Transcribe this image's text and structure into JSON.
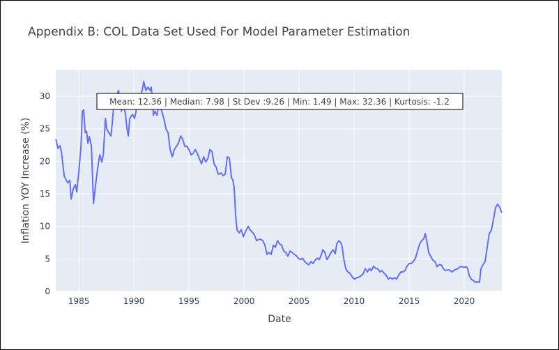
{
  "chart_data": {
    "type": "line",
    "title": "Appendix B: COL Data Set Used For Model Parameter Estimation",
    "x_label": "Date",
    "y_label": "Inflation YOY Increase (%)",
    "annotation": "Mean: 12.36 | Median: 7.98 | St Dev :9.26 | Min: 1.49 | Max: 32.36 | Kurtosis: -1.2",
    "xlim": [
      1982.9,
      2023.42
    ],
    "ylim": [
      0,
      34.08
    ],
    "xticks": [
      1985,
      1990,
      1995,
      2000,
      2005,
      2010,
      2015,
      2020
    ],
    "yticks": [
      0,
      5,
      10,
      15,
      20,
      25,
      30
    ],
    "grid": true,
    "series": [
      {
        "color": "#636efa",
        "x": [
          1982.91,
          1983.1,
          1983.29,
          1983.42,
          1983.67,
          1983.99,
          1984.18,
          1984.3,
          1984.49,
          1984.68,
          1984.81,
          1985.0,
          1985.19,
          1985.32,
          1985.44,
          1985.57,
          1985.7,
          1985.82,
          1985.95,
          1986.14,
          1986.33,
          1986.52,
          1986.71,
          1986.9,
          1987.09,
          1987.22,
          1987.41,
          1987.53,
          1987.72,
          1987.91,
          1988.04,
          1988.16,
          1988.35,
          1988.61,
          1988.86,
          1989.05,
          1989.24,
          1989.37,
          1989.49,
          1989.62,
          1989.87,
          1990.06,
          1990.25,
          1990.51,
          1990.76,
          1990.89,
          1991.08,
          1991.27,
          1991.46,
          1991.58,
          1991.77,
          1991.9,
          1992.09,
          1992.28,
          1992.53,
          1992.72,
          1992.91,
          1993.1,
          1993.29,
          1993.48,
          1993.67,
          1993.86,
          1994.05,
          1994.24,
          1994.43,
          1994.62,
          1994.81,
          1995.0,
          1995.19,
          1995.38,
          1995.57,
          1995.76,
          1995.95,
          1996.14,
          1996.33,
          1996.52,
          1996.71,
          1996.9,
          1997.09,
          1997.28,
          1997.47,
          1997.66,
          1997.91,
          1998.1,
          1998.29,
          1998.48,
          1998.67,
          1998.86,
          1998.99,
          1999.11,
          1999.24,
          1999.37,
          1999.56,
          1999.75,
          1999.94,
          2000.19,
          2000.38,
          2000.57,
          2000.76,
          2000.95,
          2001.14,
          2001.33,
          2001.52,
          2001.71,
          2001.9,
          2002.09,
          2002.28,
          2002.47,
          2002.66,
          2002.85,
          2003.04,
          2003.23,
          2003.42,
          2003.61,
          2003.8,
          2003.99,
          2004.18,
          2004.37,
          2004.56,
          2004.75,
          2004.94,
          2005.13,
          2005.32,
          2005.51,
          2005.7,
          2005.89,
          2006.08,
          2006.27,
          2006.46,
          2006.65,
          2006.84,
          2007.03,
          2007.15,
          2007.34,
          2007.53,
          2007.72,
          2007.91,
          2008.1,
          2008.29,
          2008.42,
          2008.61,
          2008.8,
          2008.92,
          2009.05,
          2009.24,
          2009.43,
          2009.62,
          2009.87,
          2010.06,
          2010.25,
          2010.44,
          2010.63,
          2010.82,
          2011.01,
          2011.2,
          2011.39,
          2011.58,
          2011.77,
          2011.96,
          2012.15,
          2012.34,
          2012.53,
          2012.72,
          2012.91,
          2013.1,
          2013.29,
          2013.48,
          2013.67,
          2013.86,
          2014.05,
          2014.24,
          2014.43,
          2014.62,
          2014.81,
          2015.0,
          2015.19,
          2015.38,
          2015.57,
          2015.76,
          2015.95,
          2016.14,
          2016.33,
          2016.46,
          2016.65,
          2016.77,
          2016.96,
          2017.15,
          2017.34,
          2017.53,
          2017.72,
          2017.91,
          2018.1,
          2018.29,
          2018.48,
          2018.67,
          2018.86,
          2019.05,
          2019.24,
          2019.43,
          2019.62,
          2019.81,
          2020.0,
          2020.19,
          2020.32,
          2020.44,
          2020.63,
          2020.82,
          2021.01,
          2021.2,
          2021.39,
          2021.52,
          2021.71,
          2021.9,
          2022.09,
          2022.28,
          2022.47,
          2022.66,
          2022.85,
          2023.04,
          2023.23,
          2023.42
        ],
        "values": [
          23.4,
          22.0,
          22.4,
          21.4,
          17.7,
          16.7,
          17.1,
          14.2,
          15.8,
          16.4,
          15.3,
          18.5,
          22.3,
          27.7,
          27.9,
          24.4,
          24.6,
          22.8,
          23.8,
          22.3,
          13.5,
          16.4,
          19.0,
          21.0,
          19.9,
          21.0,
          26.6,
          25.0,
          24.4,
          23.9,
          26.0,
          28.7,
          29.8,
          30.9,
          27.7,
          28.7,
          27.2,
          25.0,
          23.9,
          26.6,
          27.2,
          26.6,
          28.2,
          29.8,
          30.9,
          32.3,
          30.9,
          31.4,
          30.9,
          31.4,
          27.1,
          27.7,
          27.1,
          28.7,
          27.7,
          26.6,
          25.0,
          24.4,
          21.8,
          20.7,
          21.8,
          22.3,
          22.8,
          23.9,
          23.4,
          22.3,
          22.3,
          21.8,
          21.0,
          21.2,
          21.8,
          21.2,
          20.4,
          19.6,
          20.7,
          19.9,
          20.4,
          21.8,
          21.5,
          19.6,
          19.1,
          18.0,
          18.2,
          17.8,
          18.0,
          20.7,
          20.5,
          17.5,
          17.1,
          15.9,
          11.6,
          9.4,
          9.0,
          9.5,
          8.4,
          9.4,
          10.0,
          9.4,
          9.1,
          8.7,
          7.8,
          8.0,
          8.0,
          7.8,
          7.1,
          5.7,
          6.0,
          5.7,
          7.1,
          6.8,
          7.8,
          7.3,
          7.1,
          6.2,
          6.0,
          5.4,
          6.2,
          6.0,
          5.7,
          5.5,
          5.1,
          4.9,
          5.1,
          4.6,
          4.3,
          4.1,
          4.6,
          4.3,
          4.8,
          5.1,
          4.9,
          5.7,
          6.4,
          6.0,
          4.9,
          5.4,
          6.0,
          6.4,
          5.8,
          7.3,
          7.8,
          7.5,
          6.8,
          5.1,
          3.5,
          3.0,
          2.8,
          2.1,
          1.9,
          2.1,
          2.2,
          2.4,
          2.7,
          3.5,
          3.0,
          3.5,
          3.2,
          3.9,
          3.5,
          3.5,
          3.0,
          3.2,
          2.8,
          2.5,
          1.9,
          2.1,
          1.9,
          2.1,
          1.9,
          2.5,
          3.0,
          3.0,
          3.2,
          3.9,
          4.3,
          4.3,
          4.6,
          5.1,
          6.2,
          7.3,
          7.8,
          8.1,
          8.9,
          7.3,
          6.0,
          5.4,
          4.8,
          4.6,
          3.8,
          4.1,
          4.1,
          3.5,
          3.2,
          3.3,
          3.3,
          3.0,
          3.2,
          3.4,
          3.5,
          3.8,
          3.8,
          3.7,
          3.8,
          3.5,
          2.5,
          1.9,
          1.7,
          1.4,
          1.5,
          1.4,
          3.5,
          4.1,
          4.6,
          6.8,
          8.9,
          9.4,
          11.1,
          12.9,
          13.4,
          12.9,
          12.1
        ]
      }
    ]
  }
}
